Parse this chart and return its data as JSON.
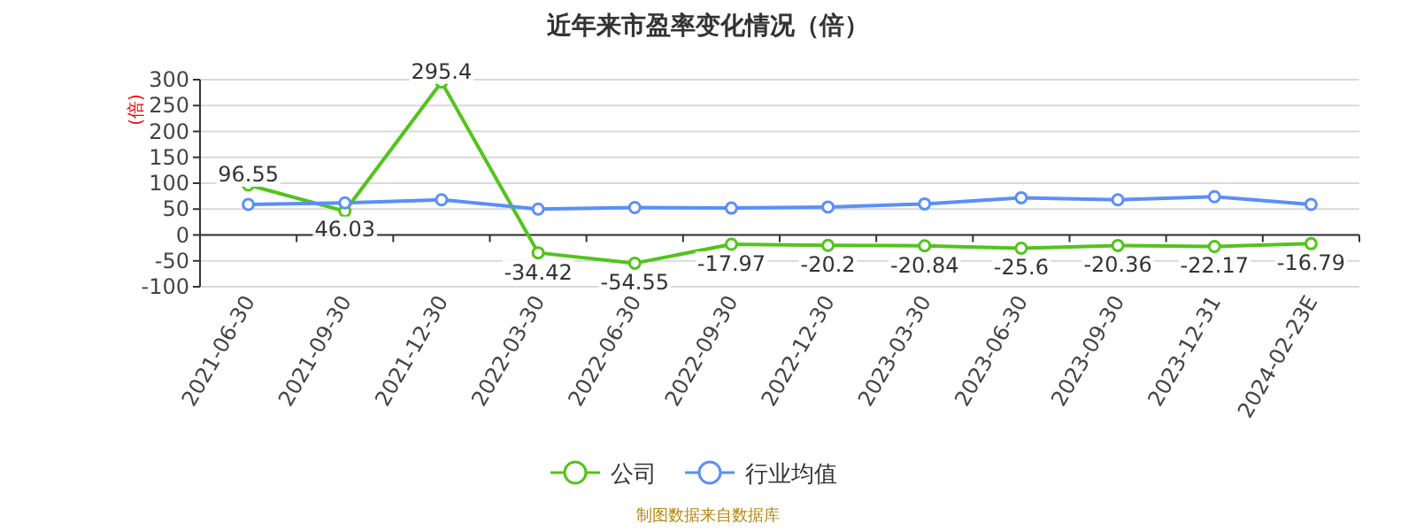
{
  "chart_data": {
    "type": "line",
    "title": "近年来市盈率变化情况（倍）",
    "ylabel": "(倍)",
    "categories": [
      "2021-06-30",
      "2021-09-30",
      "2021-12-30",
      "2022-03-30",
      "2022-06-30",
      "2022-09-30",
      "2022-12-30",
      "2023-03-30",
      "2023-06-30",
      "2023-09-30",
      "2023-12-31",
      "2024-02-23E"
    ],
    "series": [
      {
        "name": "公司",
        "color": "#52c41a",
        "values": [
          96.55,
          46.03,
          295.4,
          -34.42,
          -54.55,
          -17.97,
          -20.2,
          -20.84,
          -25.6,
          -20.36,
          -22.17,
          -16.79
        ],
        "value_labels": [
          "96.55",
          "46.03",
          "295.4",
          "-34.42",
          "-54.55",
          "-17.97",
          "-20.2",
          "-20.84",
          "-25.6",
          "-20.36",
          "-22.17",
          "-16.79"
        ]
      },
      {
        "name": "行业均值",
        "color": "#5b8ff9",
        "values": [
          59,
          62,
          68,
          50,
          53,
          52,
          54,
          60,
          72,
          68,
          74,
          59
        ]
      }
    ],
    "ylim": [
      -100,
      300
    ],
    "yticks": [
      -100,
      -50,
      0,
      50,
      100,
      150,
      200,
      250,
      300
    ],
    "grid": "y",
    "marker": "circle",
    "legend": "bottom",
    "annotations": [
      "制图数据来自数据库"
    ]
  }
}
